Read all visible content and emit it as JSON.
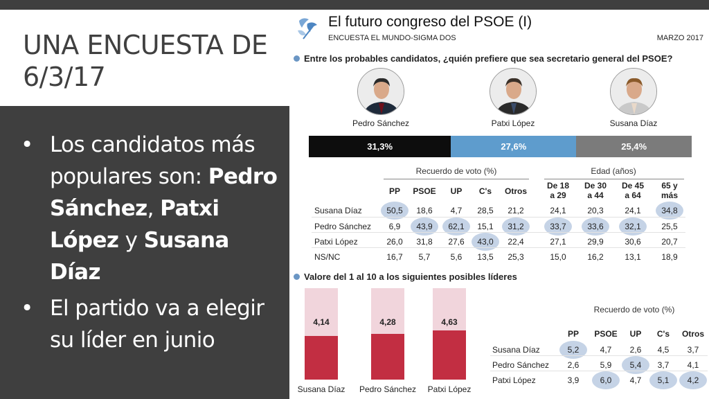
{
  "slide": {
    "title": "UNA ENCUESTA DE 6/3/17",
    "bullets": [
      {
        "pre": "Los candidatos más populares son: ",
        "n1": "Pedro Sánchez",
        "s1": ", ",
        "n2": "Patxi López",
        "s2": " y ",
        "n3": "Susana Díaz"
      },
      {
        "text": "El partido va a elegir su líder en junio"
      }
    ]
  },
  "panel": {
    "title": "El futuro congreso del PSOE (I)",
    "subtitle": "ENCUESTA EL MUNDO-SIGMA DOS",
    "date": "MARZO 2017",
    "question1": "Entre los probables candidatos, ¿quién prefiere que sea secretario general del PSOE?",
    "question2": "Valore del 1 al 10 a los siguientes posibles líderes",
    "candidates": [
      {
        "name": "Pedro Sánchez",
        "share": "31,3%",
        "value": 31.3,
        "color": "#0d0d0d"
      },
      {
        "name": "Patxi López",
        "share": "27,6%",
        "value": 27.6,
        "color": "#5e9ccd"
      },
      {
        "name": "Susana Díaz",
        "share": "25,4%",
        "value": 25.4,
        "color": "#7b7b7b"
      }
    ],
    "table1": {
      "group1": "Recuerdo de voto (%)",
      "group2": "Edad (años)",
      "headers": [
        "PP",
        "PSOE",
        "UP",
        "C's",
        "Otros",
        "De 18\na 29",
        "De 30\na 44",
        "De 45\na 64",
        "65 y\nmás"
      ],
      "rows": [
        {
          "label": "Susana Díaz",
          "values": [
            "50,5",
            "18,6",
            "4,7",
            "28,5",
            "21,2",
            "24,1",
            "20,3",
            "24,1",
            "34,8"
          ],
          "hl": [
            0,
            8
          ]
        },
        {
          "label": "Pedro Sánchez",
          "values": [
            "6,9",
            "43,9",
            "62,1",
            "15,1",
            "31,2",
            "33,7",
            "33,6",
            "32,1",
            "25,5"
          ],
          "hl": [
            1,
            2,
            4,
            5,
            6,
            7
          ]
        },
        {
          "label": "Patxi López",
          "values": [
            "26,0",
            "31,8",
            "27,6",
            "43,0",
            "22,4",
            "27,1",
            "29,9",
            "30,6",
            "20,7"
          ],
          "hl": [
            3
          ]
        },
        {
          "label": "NS/NC",
          "values": [
            "16,7",
            "5,7",
            "5,6",
            "13,5",
            "25,3",
            "15,0",
            "16,2",
            "13,1",
            "18,9"
          ],
          "hl": []
        }
      ]
    },
    "ratings": [
      {
        "name": "Susana Díaz",
        "label": "4,14",
        "value": 4.14
      },
      {
        "name": "Pedro Sánchez",
        "label": "4,28",
        "value": 4.28
      },
      {
        "name": "Patxi López",
        "label": "4,63",
        "value": 4.63
      }
    ],
    "rating_max": 10,
    "table2": {
      "group": "Recuerdo de voto (%)",
      "headers": [
        "PP",
        "PSOE",
        "UP",
        "C's",
        "Otros"
      ],
      "rows": [
        {
          "label": "Susana Díaz",
          "values": [
            "5,2",
            "4,7",
            "2,6",
            "4,5",
            "3,7"
          ],
          "hl": [
            0
          ]
        },
        {
          "label": "Pedro Sánchez",
          "values": [
            "2,6",
            "5,9",
            "5,4",
            "3,7",
            "4,1"
          ],
          "hl": [
            2
          ]
        },
        {
          "label": "Patxi López",
          "values": [
            "3,9",
            "6,0",
            "4,7",
            "5,1",
            "4,2"
          ],
          "hl": [
            1,
            3,
            4
          ]
        }
      ]
    }
  }
}
